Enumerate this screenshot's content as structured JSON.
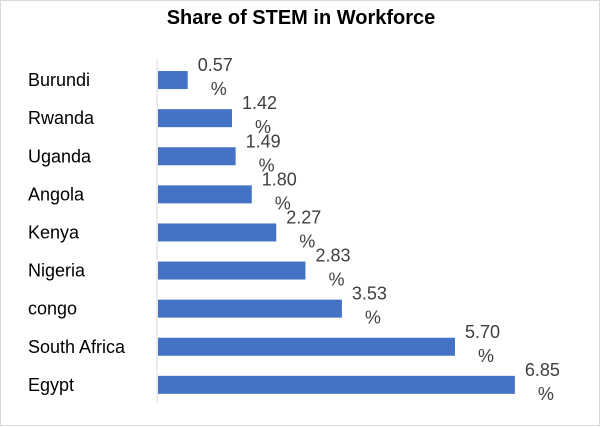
{
  "chart_data": {
    "type": "bar",
    "orientation": "horizontal",
    "title": "Share of STEM in Workforce",
    "categories": [
      "Burundi",
      "Rwanda",
      "Uganda",
      "Angola",
      "Kenya",
      "Nigeria",
      "congo",
      "South Africa",
      "Egypt"
    ],
    "series": [
      {
        "values": [
          0.57,
          1.42,
          1.49,
          1.8,
          2.27,
          2.83,
          3.53,
          5.7,
          6.85
        ]
      }
    ],
    "value_labels": [
      "0.57",
      "1.42",
      "1.49",
      "1.80",
      "2.27",
      "2.83",
      "3.53",
      "5.70",
      "6.85"
    ],
    "value_suffix": "%",
    "xlim": [
      0,
      8
    ],
    "grid": false,
    "legend": "none",
    "bar_color": "#4472c4"
  }
}
